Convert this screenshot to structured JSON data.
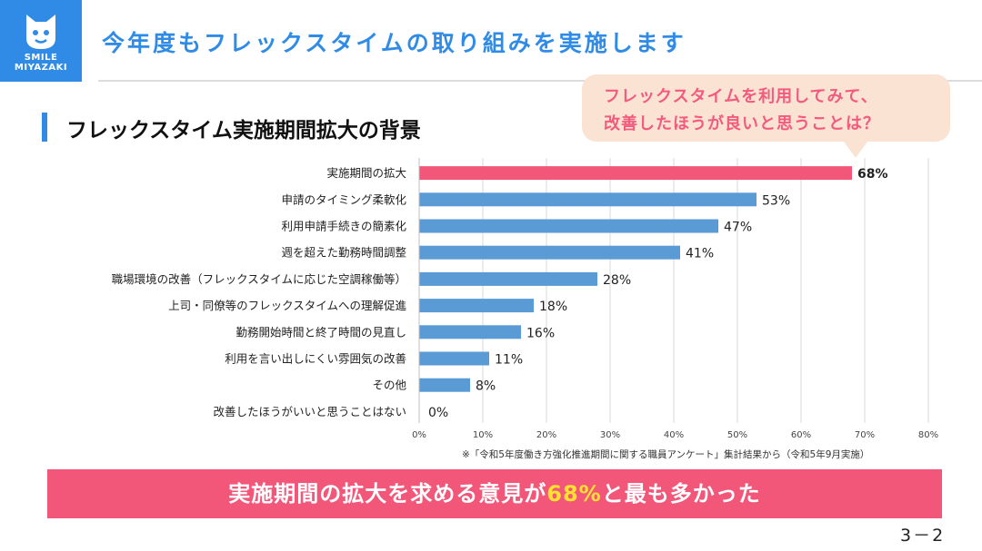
{
  "logo": {
    "line1": "SMILE",
    "line2": "MIYAZAKI"
  },
  "header": {
    "title": "今年度もフレックスタイムの取り組みを実施します"
  },
  "bubble": {
    "line1": "フレックスタイムを利用してみて、",
    "line2": "改善したほうが良いと思うことは？"
  },
  "section": {
    "title": "フレックスタイム実施期間拡大の背景"
  },
  "chart_data": {
    "type": "bar",
    "orientation": "horizontal",
    "title": "フレックスタイム実施期間拡大の背景",
    "categories": [
      "実施期間の拡大",
      "申請のタイミング柔軟化",
      "利用申請手続きの簡素化",
      "週を超えた勤務時間調整",
      "職場環境の改善（フレックスタイムに応じた空調稼働等）",
      "上司・同僚等のフレックスタイムへの理解促進",
      "勤務開始時間と終了時間の見直し",
      "利用を言い出しにくい雰囲気の改善",
      "その他",
      "改善したほうがいいと思うことはない"
    ],
    "values": [
      68,
      53,
      47,
      41,
      28,
      18,
      16,
      11,
      8,
      0
    ],
    "value_labels": [
      "68%",
      "53%",
      "47%",
      "41%",
      "28%",
      "18%",
      "16%",
      "11%",
      "8%",
      "0%"
    ],
    "xlim": [
      0,
      80
    ],
    "xticks": [
      "0%",
      "10%",
      "20%",
      "30%",
      "40%",
      "50%",
      "60%",
      "70%",
      "80%"
    ],
    "highlight_index": 0,
    "colors": {
      "bar": "#5b9bd5",
      "highlight": "#f2577a",
      "grid": "#d9d9d9"
    },
    "grid": true
  },
  "footnote": "※「令和5年度働き方強化推進期間に関する職員アンケート」集計結果から（令和5年9月実施）",
  "banner": {
    "pre": "実施期間の拡大を求める意見が",
    "highlight": "68%",
    "post": "と最も多かった"
  },
  "page_number": "3－2"
}
